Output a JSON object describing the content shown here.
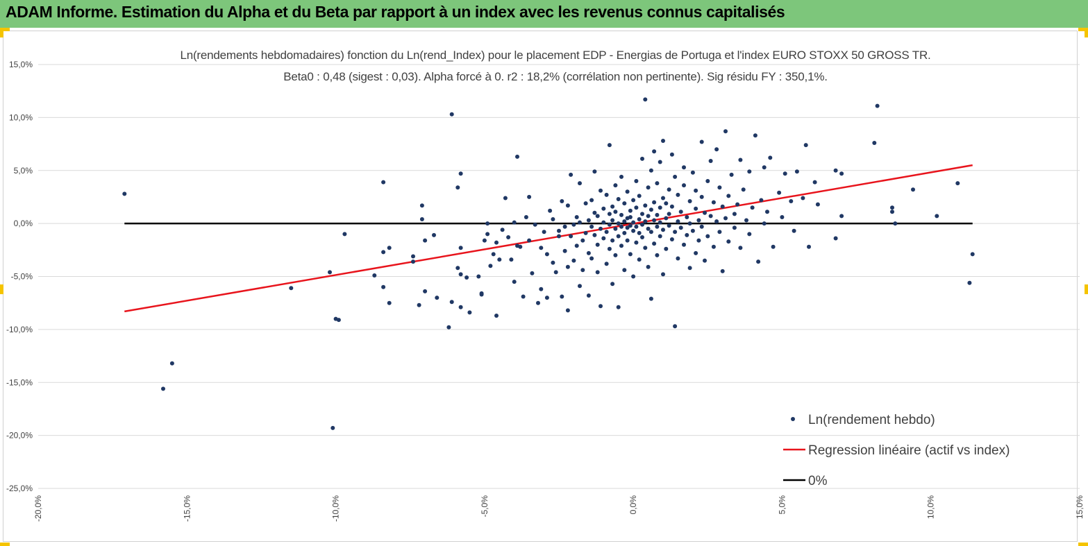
{
  "header": {
    "title": "ADAM Informe. Estimation du Alpha et du Beta par rapport à un index avec les revenus connus capitalisés"
  },
  "colors": {
    "banner": "#7dc67b",
    "points": "#203864",
    "regression": "#e8141c",
    "zero_line": "#000000",
    "handles": "#f5c400"
  },
  "chart_data": {
    "type": "scatter",
    "title": "Ln(rendements hebdomadaires) fonction du Ln(rend_Index) pour le placement EDP - Energias de Portuga et l'index EURO STOXX 50 GROSS TR.",
    "subtitle": "Beta0 : 0,48 (sigest : 0,03). Alpha forcé à 0. r2 : 18,2% (corrélation non pertinente). Sig résidu FY : 350,1%.",
    "xlim": [
      -20,
      15
    ],
    "ylim": [
      -25,
      15
    ],
    "x_ticks": [
      "-20,0%",
      "-15,0%",
      "-10,0%",
      "-5,0%",
      "0,0%",
      "5,0%",
      "10,0%",
      "15,0%"
    ],
    "y_ticks": [
      "15,0%",
      "10,0%",
      "5,0%",
      "0,0%",
      "-5,0%",
      "-10,0%",
      "-15,0%",
      "-20,0%",
      "-25,0%"
    ],
    "grid": "horizontal",
    "legend_position": "bottom-right",
    "series": [
      {
        "name": "Ln(rendement hebdo)",
        "kind": "scatter",
        "points": [
          [
            -17.1,
            2.8
          ],
          [
            -15.8,
            -15.6
          ],
          [
            -15.5,
            -13.2
          ],
          [
            -11.5,
            -6.1
          ],
          [
            -10.2,
            -4.6
          ],
          [
            -10.1,
            -19.3
          ],
          [
            -10.0,
            -9.0
          ],
          [
            -9.9,
            -9.1
          ],
          [
            -9.7,
            -1.0
          ],
          [
            -8.7,
            -4.9
          ],
          [
            -8.4,
            -2.7
          ],
          [
            -8.4,
            3.9
          ],
          [
            -8.4,
            -6.0
          ],
          [
            -8.2,
            -2.3
          ],
          [
            -8.2,
            -7.5
          ],
          [
            -7.4,
            -3.1
          ],
          [
            -7.4,
            -3.6
          ],
          [
            -7.2,
            -7.7
          ],
          [
            -7.1,
            1.7
          ],
          [
            -7.1,
            0.4
          ],
          [
            -7.0,
            -1.6
          ],
          [
            -7.0,
            -6.4
          ],
          [
            -6.7,
            -1.1
          ],
          [
            -6.6,
            -7.0
          ],
          [
            -6.2,
            -9.8
          ],
          [
            -6.1,
            10.3
          ],
          [
            -6.1,
            -7.4
          ],
          [
            -5.9,
            -4.2
          ],
          [
            -5.9,
            3.4
          ],
          [
            -5.8,
            4.7
          ],
          [
            -5.8,
            -2.3
          ],
          [
            -5.8,
            -4.8
          ],
          [
            -5.8,
            -7.9
          ],
          [
            -5.6,
            -5.1
          ],
          [
            -5.5,
            -8.4
          ],
          [
            -5.2,
            -5.0
          ],
          [
            -5.1,
            -6.6
          ],
          [
            -5.1,
            -6.7
          ],
          [
            -5.0,
            -1.6
          ],
          [
            -4.9,
            -1.0
          ],
          [
            -4.9,
            0.0
          ],
          [
            -4.8,
            -4.0
          ],
          [
            -4.7,
            -2.9
          ],
          [
            -4.6,
            -8.7
          ],
          [
            -4.6,
            -1.8
          ],
          [
            -4.5,
            -3.4
          ],
          [
            -4.4,
            -0.6
          ],
          [
            -4.3,
            2.4
          ],
          [
            -4.2,
            -1.3
          ],
          [
            -4.1,
            -3.4
          ],
          [
            -4.0,
            0.1
          ],
          [
            -4.0,
            -5.5
          ],
          [
            -3.9,
            -2.1
          ],
          [
            -3.9,
            6.3
          ],
          [
            -3.8,
            -2.2
          ],
          [
            -3.7,
            -6.9
          ],
          [
            -3.6,
            0.6
          ],
          [
            -3.5,
            -1.6
          ],
          [
            -3.5,
            2.5
          ],
          [
            -3.4,
            -4.7
          ],
          [
            -3.3,
            -0.1
          ],
          [
            -3.2,
            -7.5
          ],
          [
            -3.1,
            -2.3
          ],
          [
            -3.1,
            -6.2
          ],
          [
            -3.0,
            -0.8
          ],
          [
            -2.9,
            -2.9
          ],
          [
            -2.9,
            -7.0
          ],
          [
            -2.8,
            1.2
          ],
          [
            -2.7,
            -3.7
          ],
          [
            -2.7,
            0.4
          ],
          [
            -2.6,
            -4.6
          ],
          [
            -2.5,
            -1.2
          ],
          [
            -2.5,
            -0.7
          ],
          [
            -2.4,
            -6.9
          ],
          [
            -2.4,
            2.1
          ],
          [
            -2.3,
            -2.6
          ],
          [
            -2.3,
            -0.3
          ],
          [
            -2.2,
            -4.1
          ],
          [
            -2.2,
            -8.2
          ],
          [
            -2.2,
            1.7
          ],
          [
            -2.1,
            -1.2
          ],
          [
            -2.1,
            4.6
          ],
          [
            -2.0,
            -3.5
          ],
          [
            -2.0,
            -0.1
          ],
          [
            -1.9,
            0.6
          ],
          [
            -1.9,
            -2.1
          ],
          [
            -1.8,
            -5.9
          ],
          [
            -1.8,
            0.1
          ],
          [
            -1.8,
            3.8
          ],
          [
            -1.7,
            -1.6
          ],
          [
            -1.7,
            -4.4
          ],
          [
            -1.6,
            -0.9
          ],
          [
            -1.6,
            1.9
          ],
          [
            -1.5,
            0.3
          ],
          [
            -1.5,
            -2.8
          ],
          [
            -1.5,
            -6.8
          ],
          [
            -1.4,
            -0.3
          ],
          [
            -1.4,
            2.2
          ],
          [
            -1.4,
            -3.3
          ],
          [
            -1.3,
            1.0
          ],
          [
            -1.3,
            -1.1
          ],
          [
            -1.3,
            4.9
          ],
          [
            -1.2,
            -4.6
          ],
          [
            -1.2,
            0.7
          ],
          [
            -1.2,
            -2.0
          ],
          [
            -1.1,
            -0.5
          ],
          [
            -1.1,
            3.1
          ],
          [
            -1.1,
            -7.8
          ],
          [
            -1.0,
            1.4
          ],
          [
            -1.0,
            -1.4
          ],
          [
            -1.0,
            0.1
          ],
          [
            -0.9,
            -3.8
          ],
          [
            -0.9,
            2.7
          ],
          [
            -0.9,
            -0.8
          ],
          [
            -0.8,
            7.4
          ],
          [
            -0.8,
            -0.1
          ],
          [
            -0.8,
            -2.4
          ],
          [
            -0.8,
            0.9
          ],
          [
            -0.7,
            1.6
          ],
          [
            -0.7,
            -1.6
          ],
          [
            -0.7,
            -5.7
          ],
          [
            -0.7,
            0.3
          ],
          [
            -0.6,
            3.6
          ],
          [
            -0.6,
            -0.5
          ],
          [
            -0.6,
            -3.0
          ],
          [
            -0.6,
            1.1
          ],
          [
            -0.5,
            0.0
          ],
          [
            -0.5,
            -1.2
          ],
          [
            -0.5,
            2.3
          ],
          [
            -0.5,
            -7.9
          ],
          [
            -0.4,
            -0.3
          ],
          [
            -0.4,
            0.8
          ],
          [
            -0.4,
            -2.1
          ],
          [
            -0.4,
            4.4
          ],
          [
            -0.3,
            0.2
          ],
          [
            -0.3,
            -0.9
          ],
          [
            -0.3,
            1.9
          ],
          [
            -0.3,
            -4.4
          ],
          [
            -0.2,
            0.5
          ],
          [
            -0.2,
            -0.4
          ],
          [
            -0.2,
            3.0
          ],
          [
            -0.2,
            -1.6
          ],
          [
            -0.1,
            1.2
          ],
          [
            -0.1,
            -0.2
          ],
          [
            -0.1,
            -2.9
          ],
          [
            -0.1,
            0.6
          ],
          [
            0.0,
            2.2
          ],
          [
            0.0,
            -0.7
          ],
          [
            0.0,
            0.1
          ],
          [
            0.0,
            -5.0
          ],
          [
            0.1,
            1.5
          ],
          [
            0.1,
            -0.3
          ],
          [
            0.1,
            4.0
          ],
          [
            0.1,
            -1.8
          ],
          [
            0.2,
            0.4
          ],
          [
            0.2,
            -0.9
          ],
          [
            0.2,
            2.6
          ],
          [
            0.2,
            -3.4
          ],
          [
            0.3,
            0.9
          ],
          [
            0.3,
            -0.1
          ],
          [
            0.3,
            6.1
          ],
          [
            0.3,
            -1.3
          ],
          [
            0.4,
            11.7
          ],
          [
            0.4,
            0.2
          ],
          [
            0.4,
            -2.3
          ],
          [
            0.4,
            1.7
          ],
          [
            0.5,
            3.4
          ],
          [
            0.5,
            -0.5
          ],
          [
            0.5,
            0.7
          ],
          [
            0.5,
            -4.1
          ],
          [
            0.6,
            1.3
          ],
          [
            0.6,
            -0.8
          ],
          [
            0.6,
            5.0
          ],
          [
            0.6,
            -7.1
          ],
          [
            0.7,
            0.3
          ],
          [
            0.7,
            2.0
          ],
          [
            0.7,
            -1.9
          ],
          [
            0.7,
            6.8
          ],
          [
            0.8,
            0.8
          ],
          [
            0.8,
            -0.3
          ],
          [
            0.8,
            3.8
          ],
          [
            0.8,
            -3.0
          ],
          [
            0.9,
            1.5
          ],
          [
            0.9,
            -1.2
          ],
          [
            0.9,
            0.1
          ],
          [
            0.9,
            5.8
          ],
          [
            1.0,
            2.4
          ],
          [
            1.0,
            -0.6
          ],
          [
            1.0,
            7.8
          ],
          [
            1.0,
            -4.8
          ],
          [
            1.1,
            0.5
          ],
          [
            1.1,
            1.9
          ],
          [
            1.1,
            -2.4
          ],
          [
            1.2,
            3.2
          ],
          [
            1.2,
            -0.2
          ],
          [
            1.2,
            0.9
          ],
          [
            1.3,
            6.5
          ],
          [
            1.3,
            -1.5
          ],
          [
            1.3,
            1.6
          ],
          [
            1.4,
            -0.8
          ],
          [
            1.4,
            4.4
          ],
          [
            1.4,
            -9.7
          ],
          [
            1.5,
            0.2
          ],
          [
            1.5,
            2.7
          ],
          [
            1.5,
            -3.3
          ],
          [
            1.6,
            1.1
          ],
          [
            1.6,
            -0.4
          ],
          [
            1.7,
            3.6
          ],
          [
            1.7,
            -2.0
          ],
          [
            1.7,
            5.3
          ],
          [
            1.8,
            0.6
          ],
          [
            1.8,
            -1.1
          ],
          [
            1.9,
            2.1
          ],
          [
            1.9,
            -4.2
          ],
          [
            1.9,
            0.0
          ],
          [
            2.0,
            4.8
          ],
          [
            2.0,
            -0.7
          ],
          [
            2.1,
            1.4
          ],
          [
            2.1,
            -2.8
          ],
          [
            2.1,
            3.1
          ],
          [
            2.2,
            0.3
          ],
          [
            2.2,
            -1.6
          ],
          [
            2.3,
            7.7
          ],
          [
            2.3,
            2.5
          ],
          [
            2.3,
            -0.3
          ],
          [
            2.4,
            1.0
          ],
          [
            2.4,
            -3.5
          ],
          [
            2.5,
            4.0
          ],
          [
            2.5,
            -1.2
          ],
          [
            2.6,
            0.7
          ],
          [
            2.6,
            5.9
          ],
          [
            2.7,
            2.0
          ],
          [
            2.7,
            -2.2
          ],
          [
            2.8,
            7.0
          ],
          [
            2.8,
            0.2
          ],
          [
            2.9,
            3.4
          ],
          [
            2.9,
            -0.8
          ],
          [
            3.0,
            1.6
          ],
          [
            3.0,
            -4.5
          ],
          [
            3.1,
            8.7
          ],
          [
            3.1,
            0.5
          ],
          [
            3.2,
            2.6
          ],
          [
            3.2,
            -1.7
          ],
          [
            3.3,
            4.6
          ],
          [
            3.4,
            0.9
          ],
          [
            3.4,
            -0.4
          ],
          [
            3.5,
            1.8
          ],
          [
            3.6,
            6.0
          ],
          [
            3.6,
            -2.3
          ],
          [
            3.7,
            3.2
          ],
          [
            3.8,
            0.3
          ],
          [
            3.9,
            -1.0
          ],
          [
            3.9,
            4.9
          ],
          [
            4.0,
            1.5
          ],
          [
            4.1,
            8.3
          ],
          [
            4.2,
            -3.6
          ],
          [
            4.3,
            2.2
          ],
          [
            4.4,
            0.0
          ],
          [
            4.4,
            5.3
          ],
          [
            4.5,
            1.1
          ],
          [
            4.6,
            6.2
          ],
          [
            4.7,
            -2.2
          ],
          [
            4.9,
            2.9
          ],
          [
            5.0,
            0.6
          ],
          [
            5.1,
            4.7
          ],
          [
            5.3,
            2.1
          ],
          [
            5.4,
            -0.7
          ],
          [
            5.5,
            4.9
          ],
          [
            5.7,
            2.4
          ],
          [
            5.8,
            7.4
          ],
          [
            5.9,
            -2.2
          ],
          [
            6.1,
            3.9
          ],
          [
            6.2,
            1.8
          ],
          [
            6.8,
            5.0
          ],
          [
            6.8,
            -1.4
          ],
          [
            7.0,
            4.7
          ],
          [
            7.0,
            0.7
          ],
          [
            8.1,
            7.6
          ],
          [
            8.2,
            11.1
          ],
          [
            8.7,
            1.5
          ],
          [
            8.7,
            1.1
          ],
          [
            8.8,
            0.0
          ],
          [
            9.4,
            3.2
          ],
          [
            10.2,
            0.7
          ],
          [
            10.9,
            3.8
          ],
          [
            11.3,
            -5.6
          ],
          [
            11.4,
            -2.9
          ]
        ]
      },
      {
        "name": "Regression linéaire (actif vs index)",
        "kind": "line",
        "points": [
          [
            -17.1,
            -8.3
          ],
          [
            11.4,
            5.5
          ]
        ]
      },
      {
        "name": "0%",
        "kind": "line",
        "points": [
          [
            -17.1,
            0.0
          ],
          [
            11.4,
            0.0
          ]
        ]
      }
    ]
  }
}
